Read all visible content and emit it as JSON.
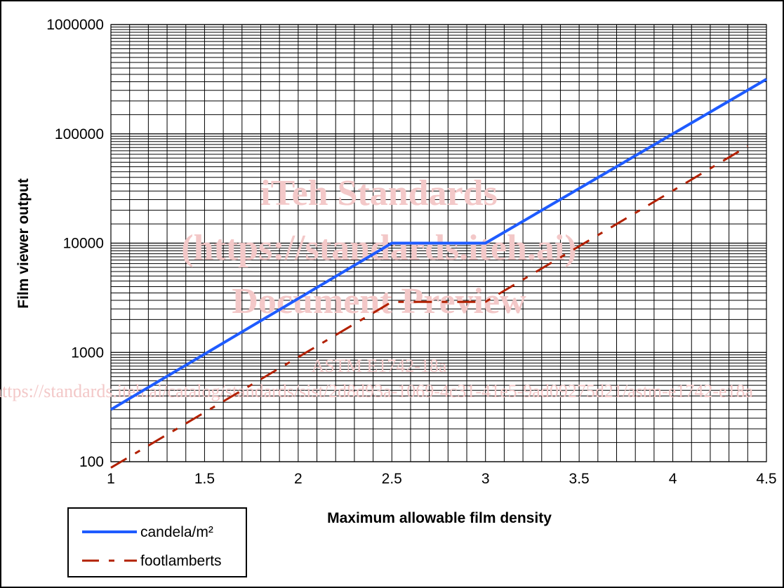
{
  "chart_data": {
    "type": "line",
    "xlabel": "Maximum allowable film density",
    "ylabel": "Film viewer output",
    "xlim": [
      1,
      4.5
    ],
    "ylim": [
      100,
      1000000
    ],
    "y_scale": "log",
    "grid": true,
    "legend_position": "bottom-left",
    "x_ticks": [
      "1",
      "1.5",
      "2",
      "2.5",
      "3",
      "3.5",
      "4",
      "4.5"
    ],
    "y_ticks": [
      "100",
      "1000",
      "10000",
      "100000",
      "1000000"
    ],
    "series": [
      {
        "name": "candela/m²",
        "color": "#1e5bff",
        "style": "solid",
        "x": [
          1,
          2.5,
          3,
          4.5
        ],
        "y": [
          300,
          10000,
          10000,
          316000
        ]
      },
      {
        "name": "footlamberts",
        "color": "#b22000",
        "style": "dash",
        "x": [
          1,
          2.5,
          3,
          4.4
        ],
        "y": [
          88,
          2900,
          2900,
          77000
        ]
      }
    ]
  },
  "watermark": {
    "line1": "iTeh Standards",
    "line2": "(https://standards.iteh.ai)",
    "line3": "Document Preview",
    "line4": "ASTM E1742-18a",
    "line5": "https://standards.iteh.ai/catalog/standards/sist/2d8d93a-1069-4c31-41e5-9ad09275d21/astm-e1742-e18a"
  }
}
